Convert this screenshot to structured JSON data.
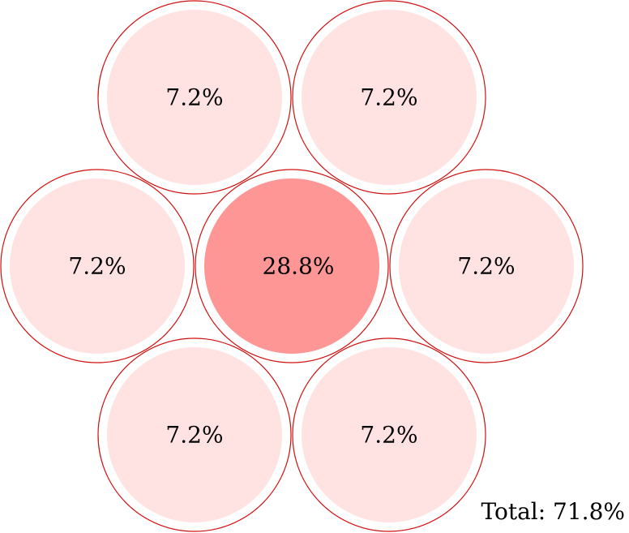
{
  "colors": {
    "outline": "#d01010",
    "center_fill": "#ff9696",
    "outer_fill": "#ffe3e3",
    "gap": "#ffffff",
    "text": "#000000"
  },
  "center": {
    "label": "28.8%",
    "value": 28.8
  },
  "outer": [
    {
      "position": "top-left",
      "label": "7.2%",
      "value": 7.2
    },
    {
      "position": "top-right",
      "label": "7.2%",
      "value": 7.2
    },
    {
      "position": "right",
      "label": "7.2%",
      "value": 7.2
    },
    {
      "position": "bottom-right",
      "label": "7.2%",
      "value": 7.2
    },
    {
      "position": "bottom-left",
      "label": "7.2%",
      "value": 7.2
    },
    {
      "position": "left",
      "label": "7.2%",
      "value": 7.2
    }
  ],
  "total": {
    "text": "Total: 71.8%"
  }
}
